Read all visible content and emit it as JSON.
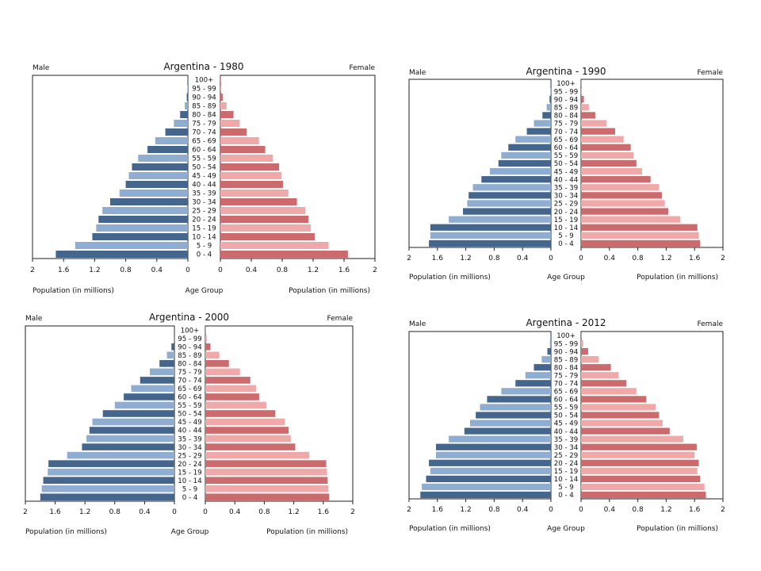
{
  "chart_data": [
    {
      "type": "bar",
      "title": "Argentina - 1980",
      "left_label": "Male",
      "right_label": "Female",
      "xlabel_left": "Population (in millions)",
      "xlabel_center": "Age Group",
      "xlabel_right": "Population (in millions)",
      "xlim": [
        0,
        2
      ],
      "xticks": [
        "2",
        "1.6",
        "1.2",
        "0.8",
        "0.4",
        "0",
        "0",
        "0.4",
        "0.8",
        "1.2",
        "1.6",
        "2"
      ],
      "grid": false,
      "categories": [
        "0 - 4",
        "5 - 9",
        "10 - 14",
        "15 - 19",
        "20 - 24",
        "25 - 29",
        "30 - 34",
        "35 - 39",
        "40 - 44",
        "45 - 49",
        "50 - 54",
        "55 - 59",
        "60 - 64",
        "65 - 69",
        "70 - 74",
        "75 - 79",
        "80 - 84",
        "85 - 89",
        "90 - 94",
        "95 - 99",
        "100+"
      ],
      "series": [
        {
          "name": "Male",
          "values": [
            1.7,
            1.45,
            1.23,
            1.18,
            1.15,
            1.1,
            1.0,
            0.88,
            0.8,
            0.76,
            0.72,
            0.64,
            0.52,
            0.42,
            0.29,
            0.18,
            0.1,
            0.04,
            0.015,
            0.005,
            0.002
          ]
        },
        {
          "name": "Female",
          "values": [
            1.65,
            1.4,
            1.22,
            1.17,
            1.14,
            1.1,
            0.99,
            0.88,
            0.81,
            0.79,
            0.76,
            0.68,
            0.58,
            0.5,
            0.34,
            0.25,
            0.17,
            0.08,
            0.03,
            0.01,
            0.003
          ]
        }
      ]
    },
    {
      "type": "bar",
      "title": "Argentina - 1990",
      "left_label": "Male",
      "right_label": "Female",
      "xlabel_left": "Population (in millions)",
      "xlabel_center": "Age Group",
      "xlabel_right": "Population (in millions)",
      "xlim": [
        0,
        2
      ],
      "xticks": [
        "2",
        "1.6",
        "1.2",
        "0.8",
        "0.4",
        "0",
        "0",
        "0.4",
        "0.8",
        "1.2",
        "1.6",
        "2"
      ],
      "grid": false,
      "categories": [
        "0 - 4",
        "5 - 9",
        "10 - 14",
        "15 - 19",
        "20 - 24",
        "25 - 29",
        "30 - 34",
        "35 - 39",
        "40 - 44",
        "45 - 49",
        "50 - 54",
        "55 - 59",
        "60 - 64",
        "65 - 69",
        "70 - 74",
        "75 - 79",
        "80 - 84",
        "85 - 89",
        "90 - 94",
        "95 - 99",
        "100+"
      ],
      "series": [
        {
          "name": "Male",
          "values": [
            1.72,
            1.7,
            1.7,
            1.44,
            1.24,
            1.18,
            1.16,
            1.1,
            0.98,
            0.86,
            0.74,
            0.7,
            0.6,
            0.5,
            0.34,
            0.24,
            0.12,
            0.06,
            0.02,
            0.005,
            0.002
          ]
        },
        {
          "name": "Female",
          "values": [
            1.68,
            1.66,
            1.64,
            1.4,
            1.23,
            1.18,
            1.14,
            1.1,
            0.98,
            0.86,
            0.78,
            0.74,
            0.7,
            0.6,
            0.48,
            0.36,
            0.2,
            0.11,
            0.04,
            0.01,
            0.004
          ]
        }
      ]
    },
    {
      "type": "bar",
      "title": "Argentina - 2000",
      "left_label": "Male",
      "right_label": "Female",
      "xlabel_left": "Population (in millions)",
      "xlabel_center": "Age Group",
      "xlabel_right": "Population (in millions)",
      "xlim": [
        0,
        2
      ],
      "xticks": [
        "2",
        "1.6",
        "1.2",
        "0.8",
        "0.4",
        "0",
        "0",
        "0.4",
        "0.8",
        "1.2",
        "1.6",
        "2"
      ],
      "grid": false,
      "categories": [
        "0 - 4",
        "5 - 9",
        "10 - 14",
        "15 - 19",
        "20 - 24",
        "25 - 29",
        "30 - 34",
        "35 - 39",
        "40 - 44",
        "45 - 49",
        "50 - 54",
        "55 - 59",
        "60 - 64",
        "65 - 69",
        "70 - 74",
        "75 - 79",
        "80 - 84",
        "85 - 89",
        "90 - 94",
        "95 - 99",
        "100+"
      ],
      "series": [
        {
          "name": "Male",
          "values": [
            1.8,
            1.78,
            1.76,
            1.7,
            1.69,
            1.44,
            1.24,
            1.18,
            1.14,
            1.1,
            0.96,
            0.8,
            0.68,
            0.58,
            0.46,
            0.33,
            0.2,
            0.1,
            0.04,
            0.01,
            0.003
          ]
        },
        {
          "name": "Female",
          "values": [
            1.68,
            1.67,
            1.66,
            1.65,
            1.64,
            1.41,
            1.22,
            1.16,
            1.13,
            1.08,
            0.95,
            0.83,
            0.73,
            0.69,
            0.61,
            0.47,
            0.32,
            0.19,
            0.07,
            0.02,
            0.005
          ]
        }
      ]
    },
    {
      "type": "bar",
      "title": "Argentina - 2012",
      "left_label": "Male",
      "right_label": "Female",
      "xlabel_left": "Population (in millions)",
      "xlabel_center": "Age Group",
      "xlabel_right": "Population (in millions)",
      "xlim": [
        0,
        2
      ],
      "xticks": [
        "2",
        "1.6",
        "1.2",
        "0.8",
        "0.4",
        "0",
        "0",
        "0.4",
        "0.8",
        "1.2",
        "1.6",
        "2"
      ],
      "grid": false,
      "categories": [
        "0 - 4",
        "5 - 9",
        "10 - 14",
        "15 - 19",
        "20 - 24",
        "25 - 29",
        "30 - 34",
        "35 - 39",
        "40 - 44",
        "45 - 49",
        "50 - 54",
        "55 - 59",
        "60 - 64",
        "65 - 69",
        "70 - 74",
        "75 - 79",
        "80 - 84",
        "85 - 89",
        "90 - 94",
        "95 - 99",
        "100+"
      ],
      "series": [
        {
          "name": "Male",
          "values": [
            1.84,
            1.82,
            1.76,
            1.7,
            1.72,
            1.62,
            1.62,
            1.44,
            1.22,
            1.14,
            1.06,
            1.0,
            0.9,
            0.7,
            0.5,
            0.36,
            0.24,
            0.13,
            0.05,
            0.015,
            0.004
          ]
        },
        {
          "name": "Female",
          "values": [
            1.76,
            1.74,
            1.68,
            1.64,
            1.66,
            1.6,
            1.63,
            1.44,
            1.25,
            1.15,
            1.1,
            1.05,
            0.92,
            0.78,
            0.64,
            0.53,
            0.42,
            0.25,
            0.1,
            0.03,
            0.008
          ]
        }
      ]
    }
  ],
  "colors": {
    "male_dark": "#45668c",
    "male_light": "#8fadd0",
    "female_dark": "#cb6b6d",
    "female_light": "#f0a9a9",
    "axis": "#222222"
  }
}
